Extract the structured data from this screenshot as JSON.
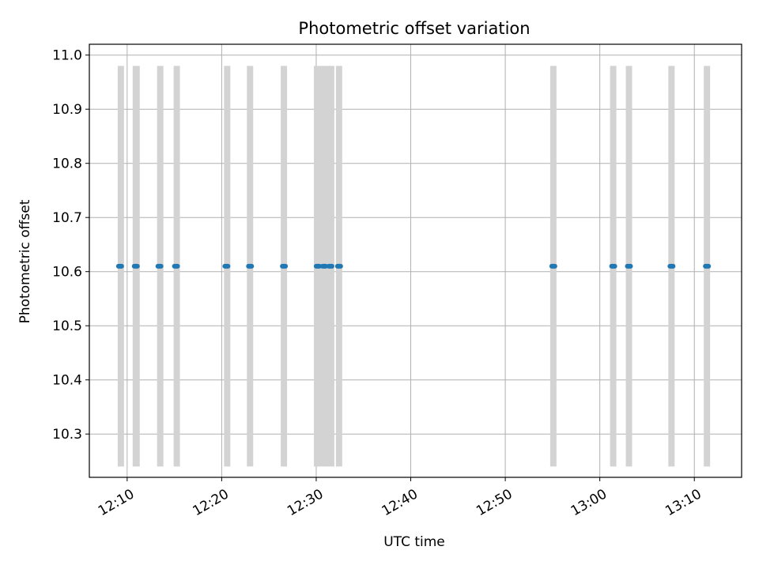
{
  "chart_data": {
    "type": "scatter",
    "title": "Photometric offset variation",
    "xlabel": "UTC time",
    "ylabel": "Photometric offset",
    "x_axis_kind": "time",
    "xlim": [
      "12:06:00",
      "13:15:00"
    ],
    "ylim": [
      10.22,
      11.02
    ],
    "x_ticks": [
      "12:10",
      "12:20",
      "12:30",
      "12:40",
      "12:50",
      "13:00",
      "13:10"
    ],
    "y_ticks": [
      "10.3",
      "10.4",
      "10.5",
      "10.6",
      "10.7",
      "10.8",
      "10.9",
      "11.0"
    ],
    "grid": true,
    "band_color": "#d3d3d3",
    "point_color": "#1f77b4",
    "band_range": [
      10.24,
      10.98
    ],
    "bands": [
      [
        "12:09:00",
        "12:09:40"
      ],
      [
        "12:10:35",
        "12:11:20"
      ],
      [
        "12:13:10",
        "12:13:50"
      ],
      [
        "12:14:55",
        "12:15:35"
      ],
      [
        "12:20:15",
        "12:20:55"
      ],
      [
        "12:22:40",
        "12:23:20"
      ],
      [
        "12:26:15",
        "12:26:55"
      ],
      [
        "12:29:45",
        "12:31:55"
      ],
      [
        "12:32:05",
        "12:32:45"
      ],
      [
        "12:54:45",
        "12:55:25"
      ],
      [
        "13:01:05",
        "13:01:45"
      ],
      [
        "13:02:45",
        "13:03:25"
      ],
      [
        "13:07:15",
        "13:07:55"
      ],
      [
        "13:11:00",
        "13:11:40"
      ]
    ],
    "points": [
      {
        "x": "12:09:15",
        "y": 10.61
      },
      {
        "x": "12:10:55",
        "y": 10.61
      },
      {
        "x": "12:13:25",
        "y": 10.61
      },
      {
        "x": "12:15:10",
        "y": 10.61
      },
      {
        "x": "12:20:30",
        "y": 10.61
      },
      {
        "x": "12:23:00",
        "y": 10.61
      },
      {
        "x": "12:26:35",
        "y": 10.61
      },
      {
        "x": "12:30:10",
        "y": 10.61
      },
      {
        "x": "12:30:50",
        "y": 10.61
      },
      {
        "x": "12:31:30",
        "y": 10.61
      },
      {
        "x": "12:32:25",
        "y": 10.61
      },
      {
        "x": "12:55:05",
        "y": 10.61
      },
      {
        "x": "13:01:25",
        "y": 10.61
      },
      {
        "x": "13:03:05",
        "y": 10.61
      },
      {
        "x": "13:07:35",
        "y": 10.61
      },
      {
        "x": "13:11:20",
        "y": 10.61
      }
    ]
  }
}
